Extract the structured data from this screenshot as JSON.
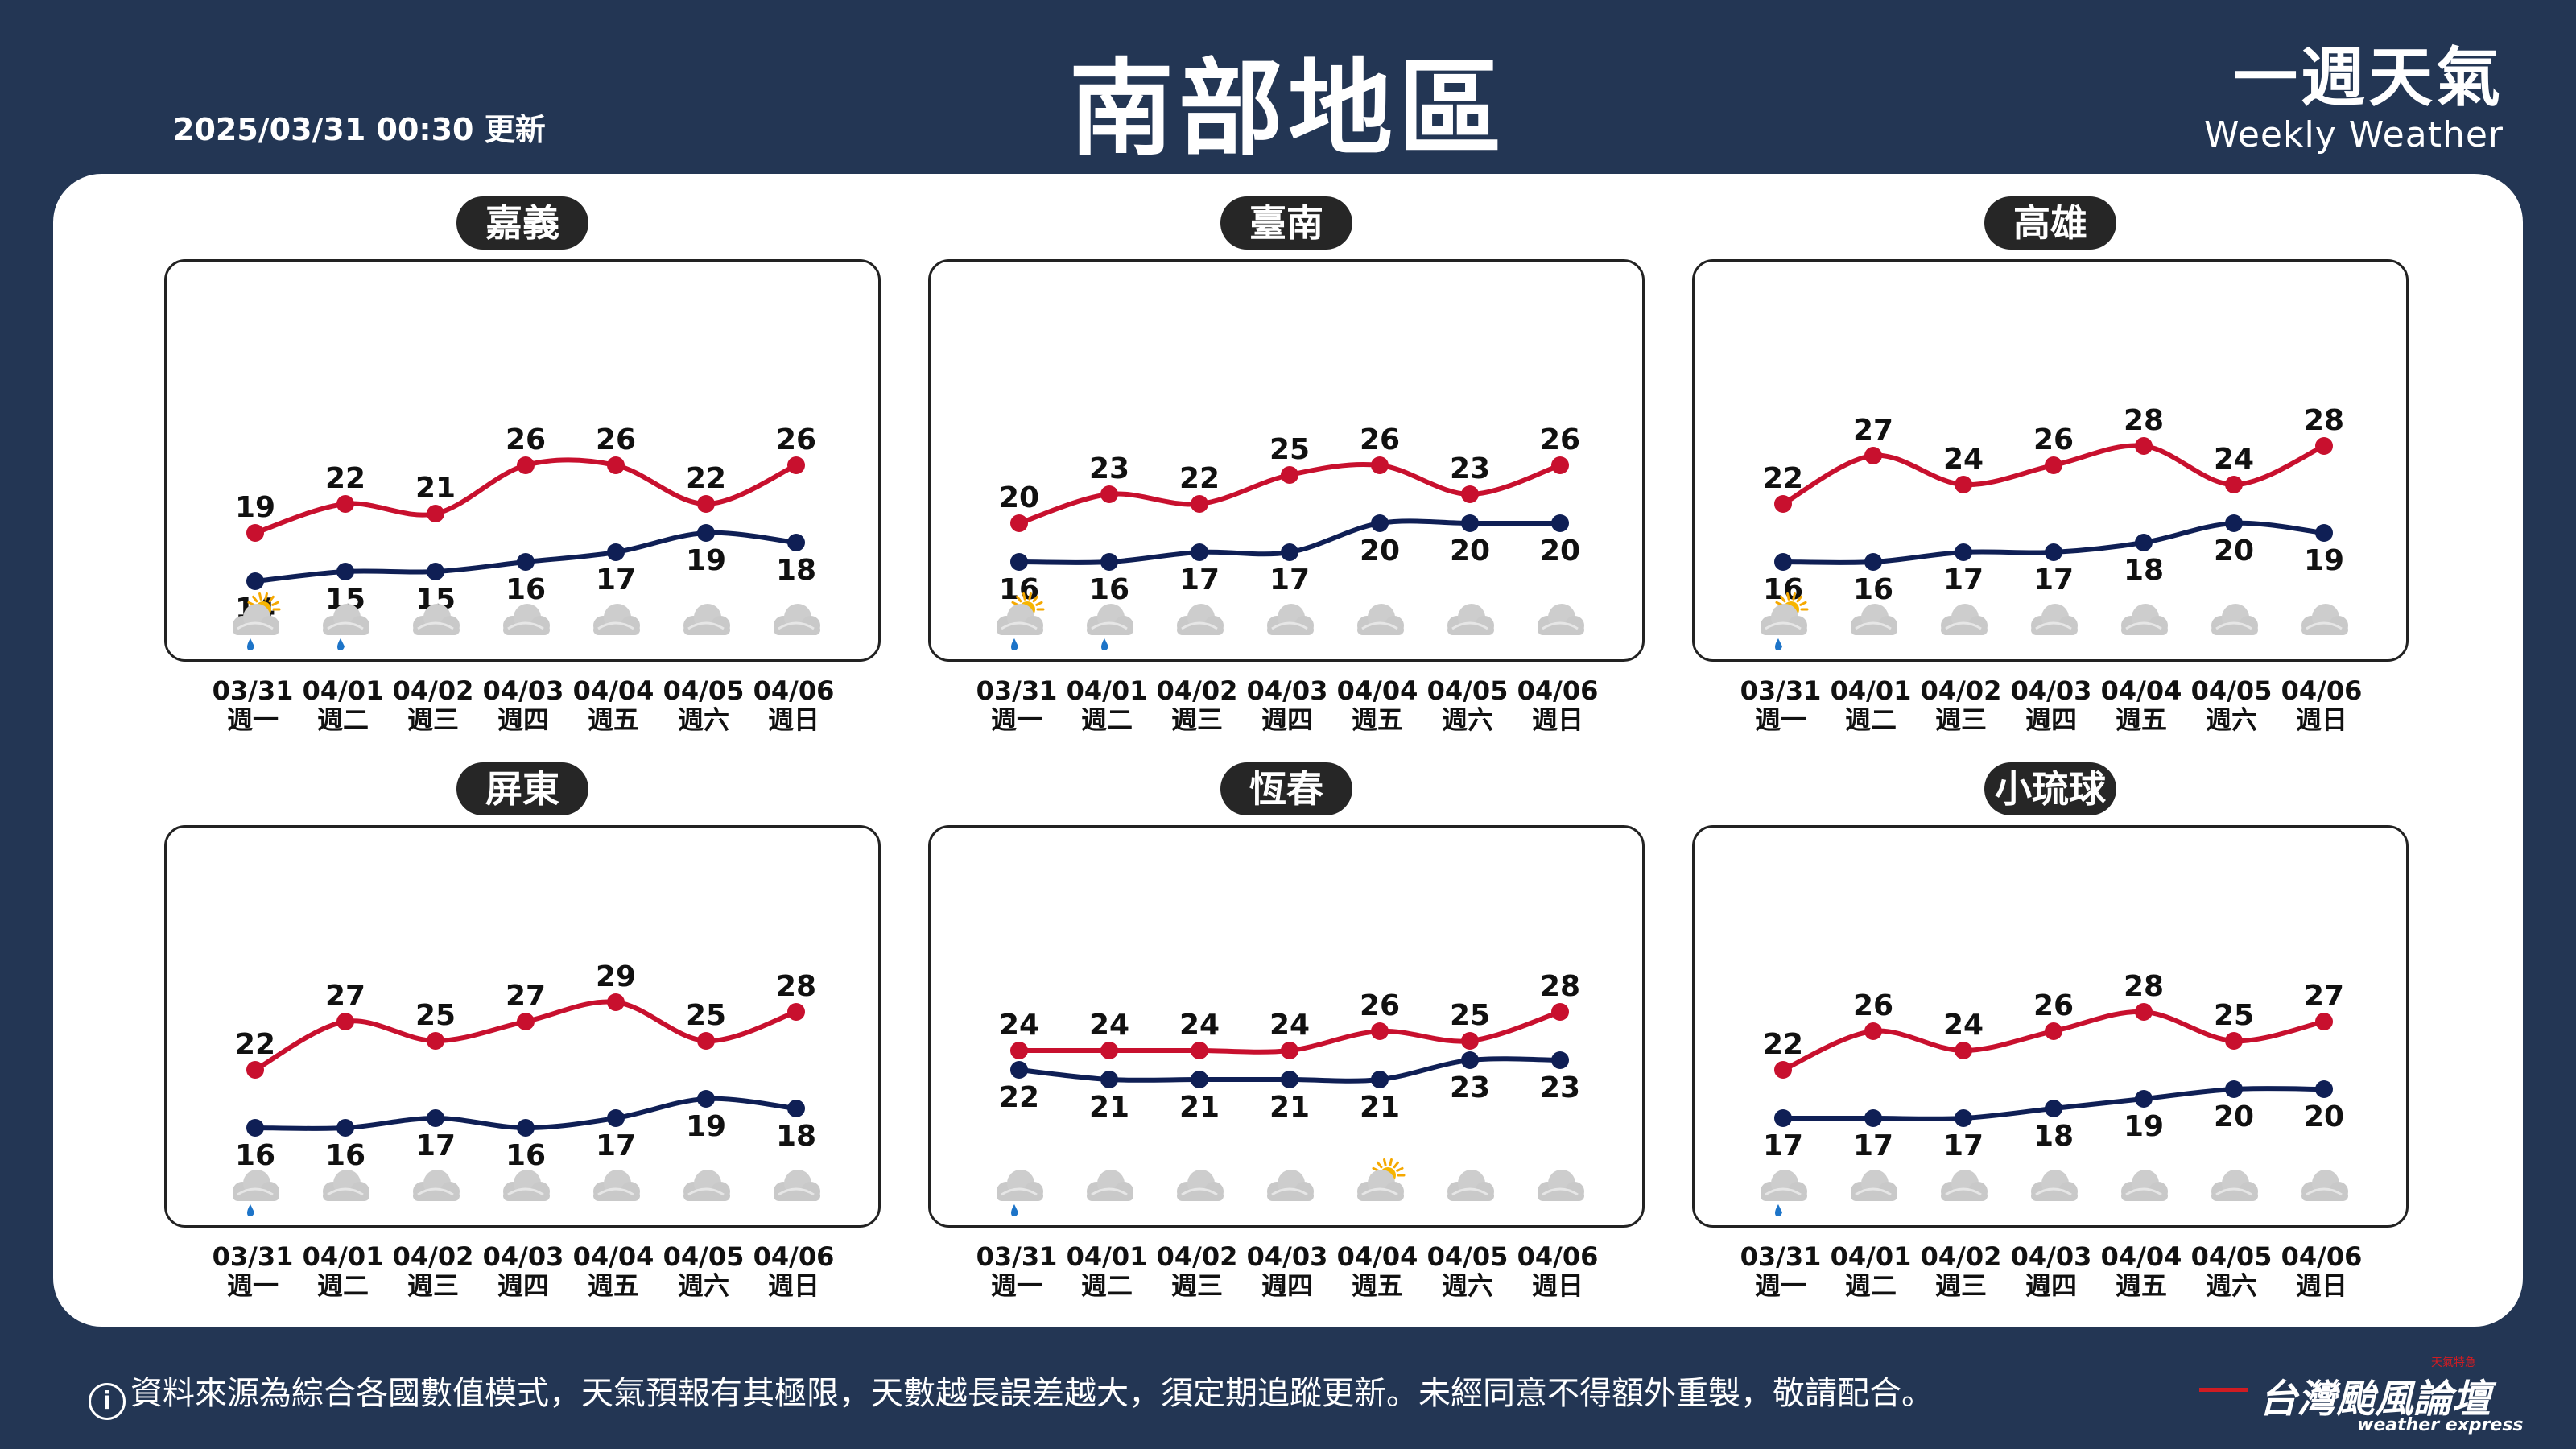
{
  "header": {
    "updated": "2025/03/31 00:30 更新",
    "title": "南部地區",
    "brand_zh": "一週天氣",
    "brand_en": "Weekly Weather"
  },
  "footer": {
    "info_icon": "i",
    "note": "資料來源為綜合各國數值模式，天氣預報有其極限，天數越長誤差越大，須定期追蹤更新。未經同意不得額外重製，敬請配合。",
    "logo_zh": "台灣颱風論壇",
    "logo_en": "weather express",
    "logo_tag": "天氣特急"
  },
  "colors": {
    "high": "#c8102e",
    "low": "#0f1f55",
    "background": "#233654"
  },
  "chart_data": [
    {
      "type": "line",
      "title": "嘉義",
      "x": [
        "03/31",
        "04/01",
        "04/02",
        "04/03",
        "04/04",
        "04/05",
        "04/06"
      ],
      "weekday": [
        "週一",
        "週二",
        "週三",
        "週四",
        "週五",
        "週六",
        "週日"
      ],
      "high": [
        19,
        22,
        21,
        26,
        26,
        22,
        26
      ],
      "low": [
        14,
        15,
        15,
        16,
        17,
        19,
        18
      ],
      "icons": [
        "partly-sunny-rain-icon",
        "rain-cloud-icon",
        "cloud-icon",
        "cloud-icon",
        "cloud-icon",
        "cloud-icon",
        "cloud-icon"
      ]
    },
    {
      "type": "line",
      "title": "臺南",
      "x": [
        "03/31",
        "04/01",
        "04/02",
        "04/03",
        "04/04",
        "04/05",
        "04/06"
      ],
      "weekday": [
        "週一",
        "週二",
        "週三",
        "週四",
        "週五",
        "週六",
        "週日"
      ],
      "high": [
        20,
        23,
        22,
        25,
        26,
        23,
        26
      ],
      "low": [
        16,
        16,
        17,
        17,
        20,
        20,
        20
      ],
      "icons": [
        "partly-sunny-rain-icon",
        "rain-cloud-icon",
        "cloud-icon",
        "cloud-icon",
        "cloud-icon",
        "cloud-icon",
        "cloud-icon"
      ]
    },
    {
      "type": "line",
      "title": "高雄",
      "x": [
        "03/31",
        "04/01",
        "04/02",
        "04/03",
        "04/04",
        "04/05",
        "04/06"
      ],
      "weekday": [
        "週一",
        "週二",
        "週三",
        "週四",
        "週五",
        "週六",
        "週日"
      ],
      "high": [
        22,
        27,
        24,
        26,
        28,
        24,
        28
      ],
      "low": [
        16,
        16,
        17,
        17,
        18,
        20,
        19
      ],
      "icons": [
        "partly-sunny-rain-icon",
        "cloud-icon",
        "cloud-icon",
        "cloud-icon",
        "cloud-icon",
        "cloud-icon",
        "cloud-icon"
      ]
    },
    {
      "type": "line",
      "title": "屏東",
      "x": [
        "03/31",
        "04/01",
        "04/02",
        "04/03",
        "04/04",
        "04/05",
        "04/06"
      ],
      "weekday": [
        "週一",
        "週二",
        "週三",
        "週四",
        "週五",
        "週六",
        "週日"
      ],
      "high": [
        22,
        27,
        25,
        27,
        29,
        25,
        28
      ],
      "low": [
        16,
        16,
        17,
        16,
        17,
        19,
        18
      ],
      "icons": [
        "rain-cloud-icon",
        "cloud-icon",
        "cloud-icon",
        "cloud-icon",
        "cloud-icon",
        "cloud-icon",
        "cloud-icon"
      ]
    },
    {
      "type": "line",
      "title": "恆春",
      "x": [
        "03/31",
        "04/01",
        "04/02",
        "04/03",
        "04/04",
        "04/05",
        "04/06"
      ],
      "weekday": [
        "週一",
        "週二",
        "週三",
        "週四",
        "週五",
        "週六",
        "週日"
      ],
      "high": [
        24,
        24,
        24,
        24,
        26,
        25,
        28
      ],
      "low": [
        22,
        21,
        21,
        21,
        21,
        23,
        23
      ],
      "icons": [
        "rain-cloud-icon",
        "cloud-icon",
        "cloud-icon",
        "cloud-icon",
        "partly-sunny-icon",
        "cloud-icon",
        "cloud-icon"
      ]
    },
    {
      "type": "line",
      "title": "小琉球",
      "x": [
        "03/31",
        "04/01",
        "04/02",
        "04/03",
        "04/04",
        "04/05",
        "04/06"
      ],
      "weekday": [
        "週一",
        "週二",
        "週三",
        "週四",
        "週五",
        "週六",
        "週日"
      ],
      "high": [
        22,
        26,
        24,
        26,
        28,
        25,
        27
      ],
      "low": [
        17,
        17,
        17,
        18,
        19,
        20,
        20
      ],
      "icons": [
        "rain-cloud-icon",
        "cloud-icon",
        "cloud-icon",
        "cloud-icon",
        "cloud-icon",
        "cloud-icon",
        "cloud-icon"
      ]
    }
  ]
}
